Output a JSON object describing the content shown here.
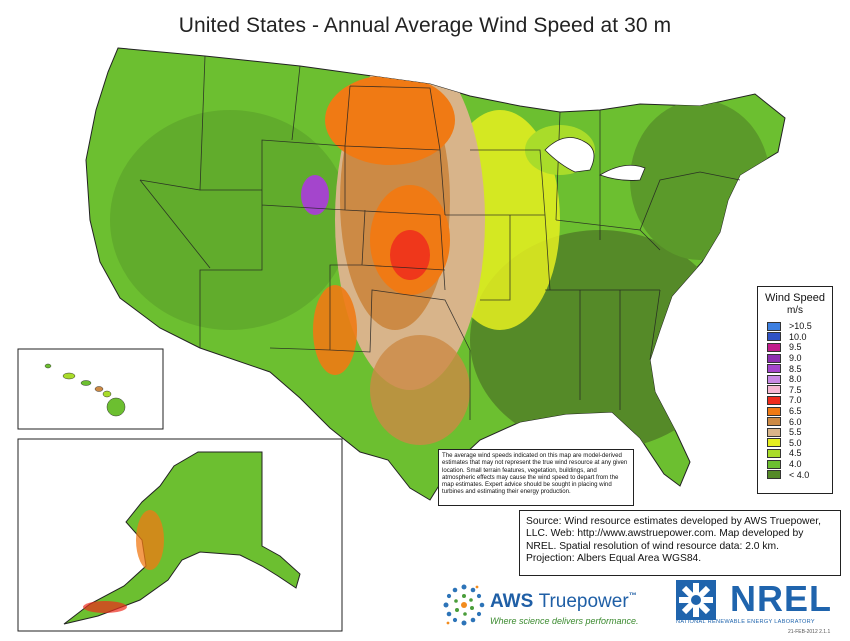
{
  "title": "United States - Annual Average Wind Speed at 30 m",
  "legend": {
    "title": "Wind Speed",
    "units": "m/s",
    "items": [
      {
        "label": ">10.5",
        "color": "#3d7fe0"
      },
      {
        "label": "10.0",
        "color": "#2f52c4"
      },
      {
        "label": "9.5",
        "color": "#c21c8c"
      },
      {
        "label": "9.0",
        "color": "#8e2fb0"
      },
      {
        "label": "8.5",
        "color": "#a445cc"
      },
      {
        "label": "8.0",
        "color": "#c98ae6"
      },
      {
        "label": "7.5",
        "color": "#f6b9d4"
      },
      {
        "label": "7.0",
        "color": "#ee2b1c"
      },
      {
        "label": "6.5",
        "color": "#f07a14"
      },
      {
        "label": "6.0",
        "color": "#cc8a45"
      },
      {
        "label": "5.5",
        "color": "#d8b48a"
      },
      {
        "label": "5.0",
        "color": "#e6ef20"
      },
      {
        "label": "4.5",
        "color": "#a9dc2a"
      },
      {
        "label": "4.0",
        "color": "#6cbf30"
      },
      {
        "label": "< 4.0",
        "color": "#558a28"
      }
    ]
  },
  "disclaimer": "The average wind speeds indicated on this map are model-derived estimates that may not represent the true wind resource at any given location. Small terrain features, vegetation, buildings, and atmospheric effects may cause the wind speed to depart from the map estimates. Expert advice should be sought in placing wind turbines and estimating their energy production.",
  "source": {
    "line1": "Source:  Wind resource estimates developed by AWS Truepower,",
    "line2": "LLC.  Web: http://www.awstruepower.com. Map developed by",
    "line3": "NREL.  Spatial resolution of wind resource data: 2.0 km.",
    "line4": "Projection: Albers Equal Area WGS84."
  },
  "logos": {
    "aws_name": "AWS",
    "aws_name2": "Truepower",
    "aws_tm": "™",
    "aws_tagline": "Where science delivers performance.",
    "nrel_name": "NREL",
    "nrel_sub": "NATIONAL RENEWABLE ENERGY LABORATORY"
  },
  "stamp": "21-FEB-2012 2.1.1"
}
